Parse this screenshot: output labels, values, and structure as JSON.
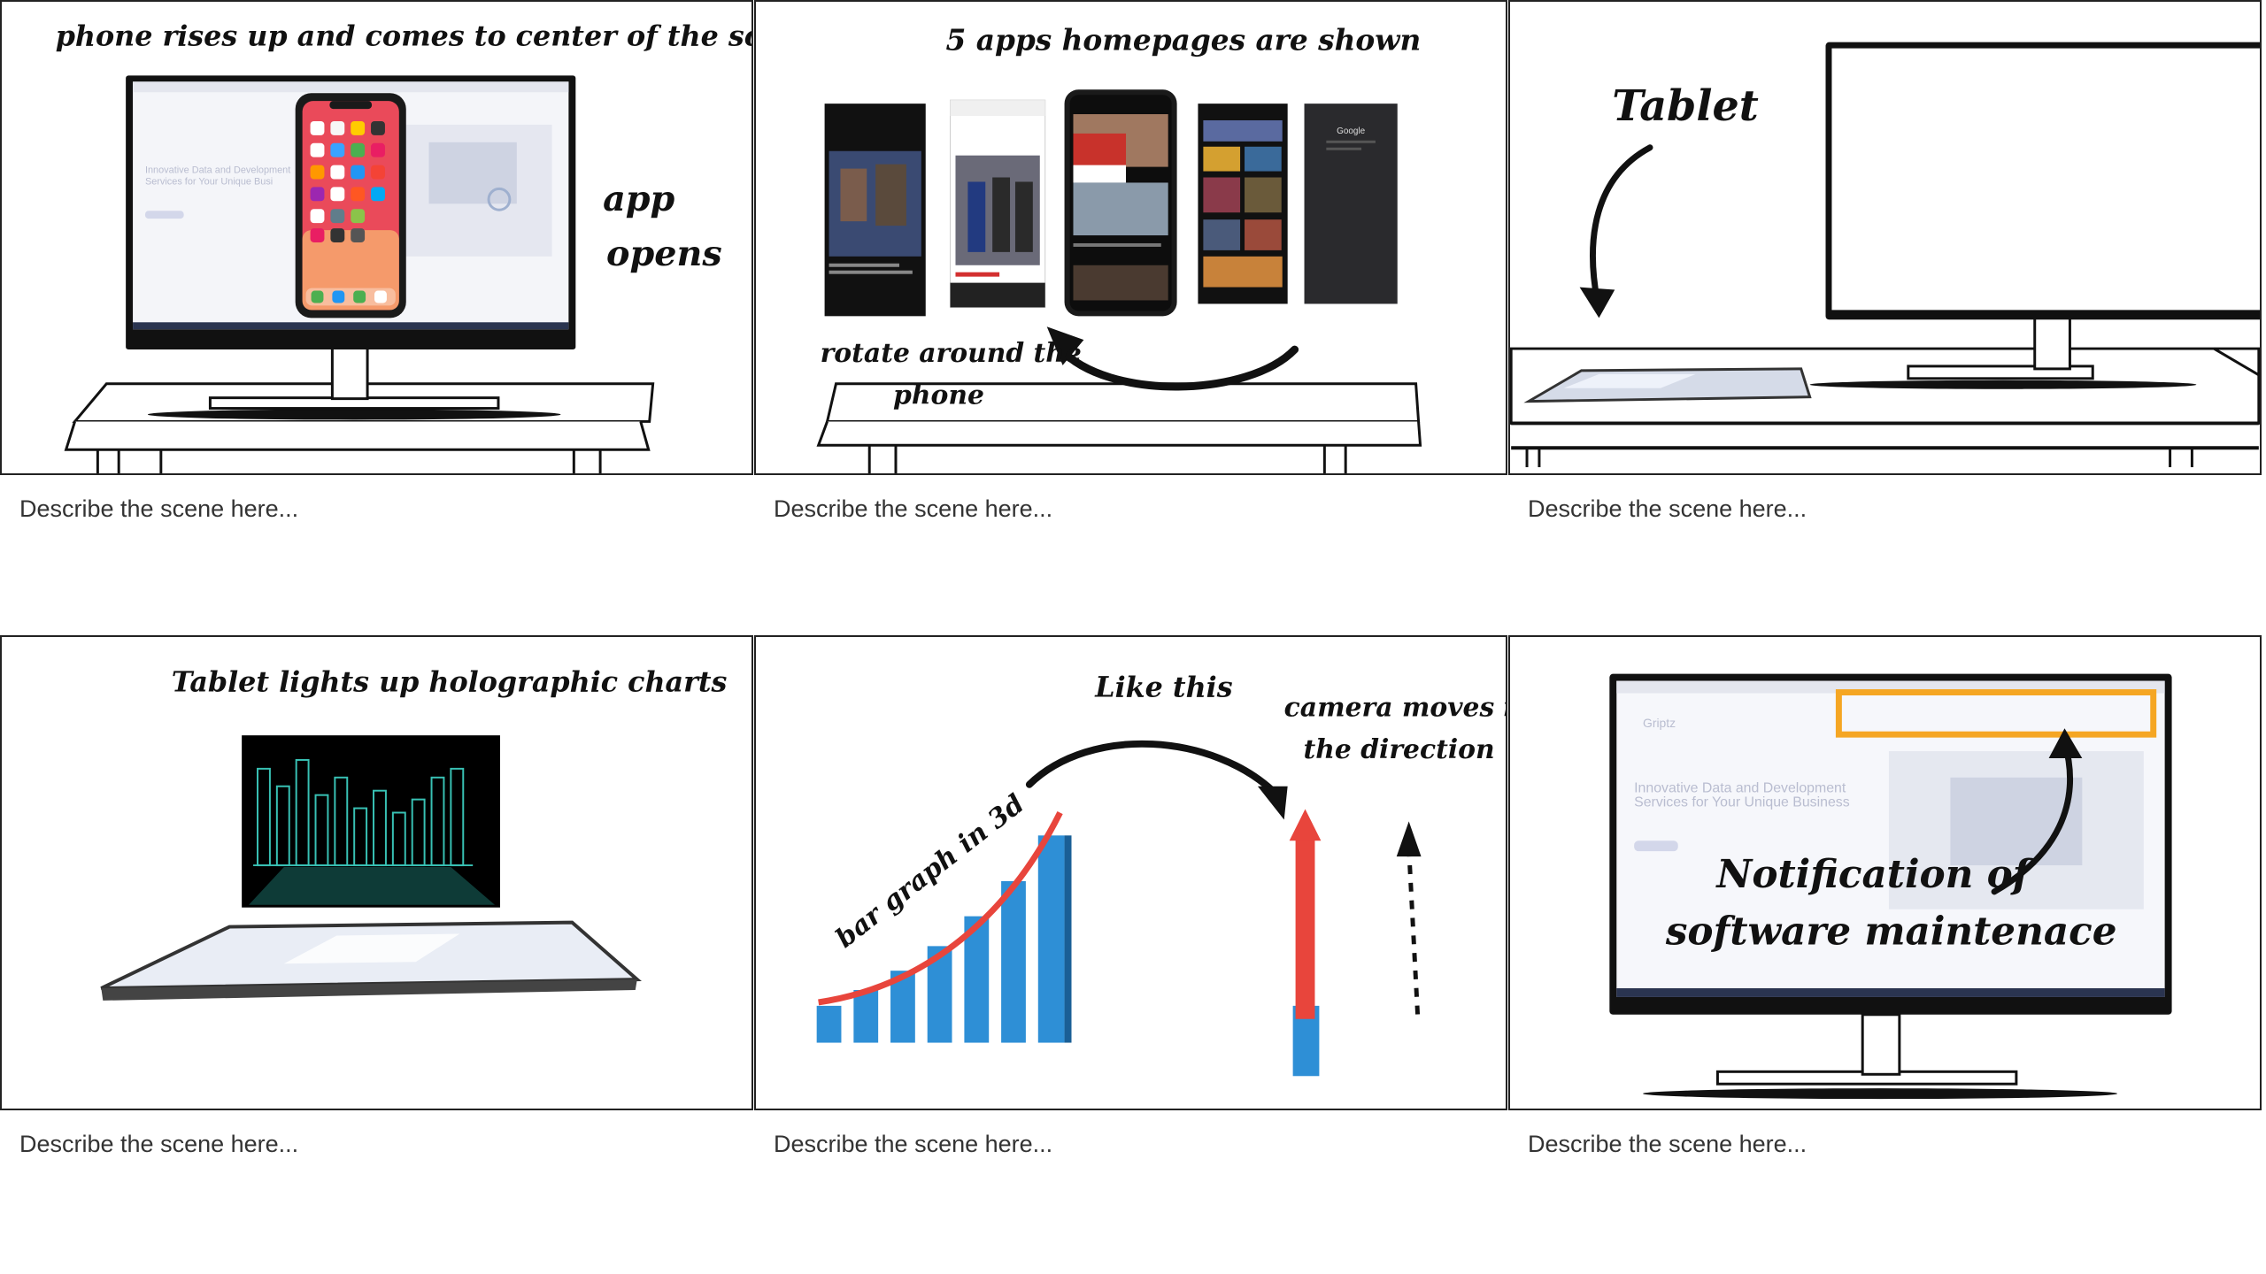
{
  "panels": [
    {
      "annotations": [
        "phone rises up and comes to center of the screen",
        "app",
        "opens"
      ],
      "screen_lines": [
        "Innovative Data and Development",
        "Services for Your Unique Busi"
      ],
      "caption": "Describe the scene here..."
    },
    {
      "annotations": [
        "5 apps homepages are shown",
        "rotate around the",
        "phone"
      ],
      "google_label": "Google",
      "caption": "Describe the scene here..."
    },
    {
      "annotations": [
        "Tablet"
      ],
      "caption": "Describe the scene here..."
    },
    {
      "annotations": [
        "Tablet lights up holographic charts"
      ],
      "caption": "Describe the scene here..."
    },
    {
      "annotations": [
        "Like this",
        "camera moves in",
        "the direction",
        "bar graph in 3d"
      ],
      "caption": "Describe the scene here..."
    },
    {
      "annotations": [
        "Notification of",
        "software maintenace"
      ],
      "screen_lines": [
        "Innovative Data and Development",
        "Services for Your Unique Business"
      ],
      "logo": "Griptz",
      "caption": "Describe the scene here..."
    }
  ],
  "colors": {
    "border": "#222222",
    "highlight": "#f5a623",
    "arrow_red": "#e8453c",
    "bar_blue": "#2e8fd6",
    "hologram": "#3fd6c8"
  }
}
